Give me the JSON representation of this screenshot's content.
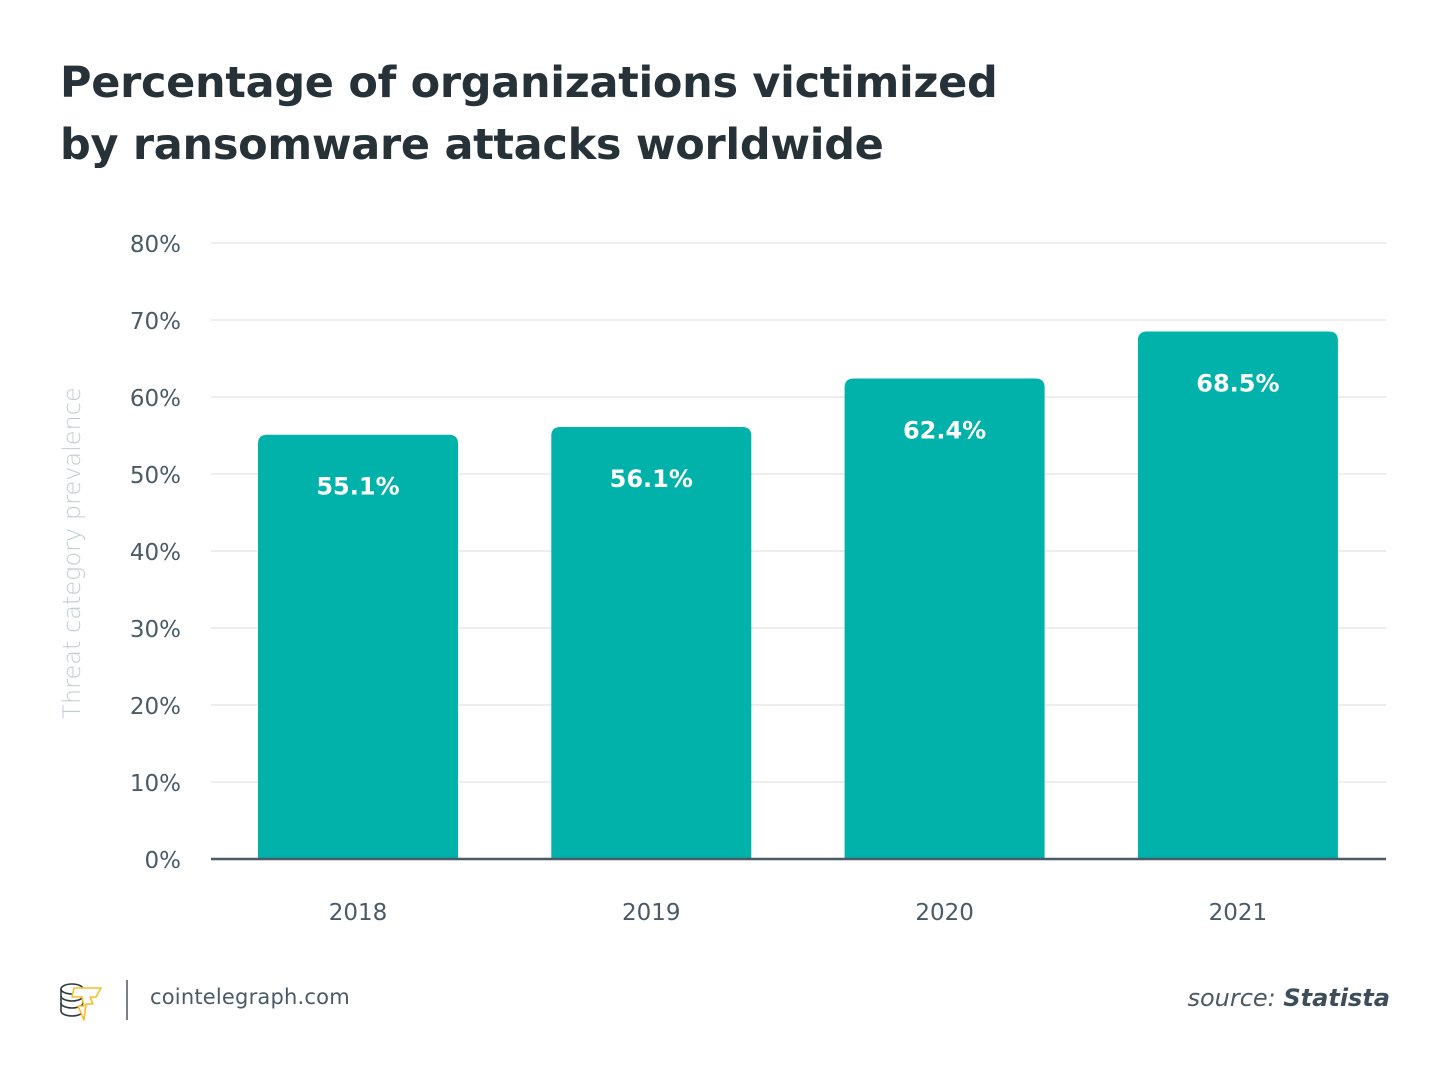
{
  "colors": {
    "bar": "#00B2A9",
    "title": "#263238",
    "tick_label": "#4a5a66",
    "ylabel": "#c2ccd2",
    "grid": "#eeeeee",
    "axis": "#4a5a66",
    "value_label": "#ffffff",
    "logo_accent": "#F5BE2B",
    "logo_outline": "#2e3a40"
  },
  "chart_data": {
    "type": "bar",
    "title": "Percentage of organizations victimized by ransomware attacks worldwide",
    "title_lines": [
      "Percentage of organizations victimized",
      "by ransomware attacks worldwide"
    ],
    "xlabel": "",
    "ylabel": "Threat category prevalence",
    "categories": [
      "2018",
      "2019",
      "2020",
      "2021"
    ],
    "values": [
      55.1,
      56.1,
      62.4,
      68.5
    ],
    "value_labels": [
      "55.1%",
      "56.1%",
      "62.4%",
      "68.5%"
    ],
    "ylim": [
      0,
      80
    ],
    "yticks": [
      0,
      10,
      20,
      30,
      40,
      50,
      60,
      70,
      80
    ],
    "ytick_labels": [
      "0%",
      "10%",
      "20%",
      "30%",
      "40%",
      "50%",
      "60%",
      "70%",
      "80%"
    ],
    "grid": true,
    "legend": "none"
  },
  "footer": {
    "logo_icon": "cointelegraph-logo-icon",
    "site": "cointelegraph.com",
    "source_label": "source:",
    "source_name": "Statista"
  }
}
